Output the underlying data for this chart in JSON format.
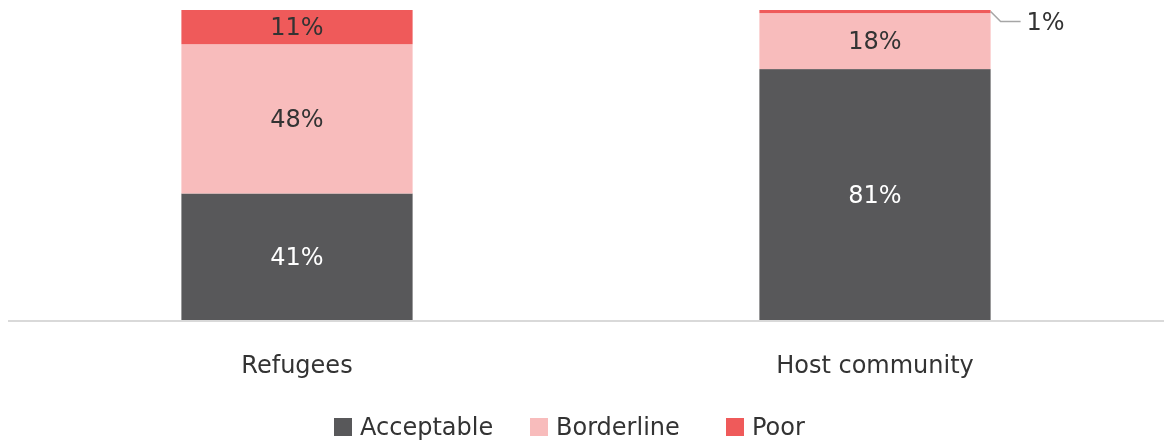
{
  "chart_data": {
    "type": "bar",
    "stacked": true,
    "categories": [
      "Refugees",
      "Host community"
    ],
    "series": [
      {
        "name": "Acceptable",
        "color": "#58585a",
        "values": [
          41,
          81
        ],
        "value_labels": [
          "41%",
          "81%"
        ]
      },
      {
        "name": "Borderline",
        "color": "#f8bcbc",
        "values": [
          48,
          18
        ],
        "value_labels": [
          "48%",
          "18%"
        ]
      },
      {
        "name": "Poor",
        "color": "#ef5a5a",
        "values": [
          11,
          1
        ],
        "value_labels": [
          "11%",
          "1%"
        ]
      }
    ],
    "legend": "bottom"
  }
}
